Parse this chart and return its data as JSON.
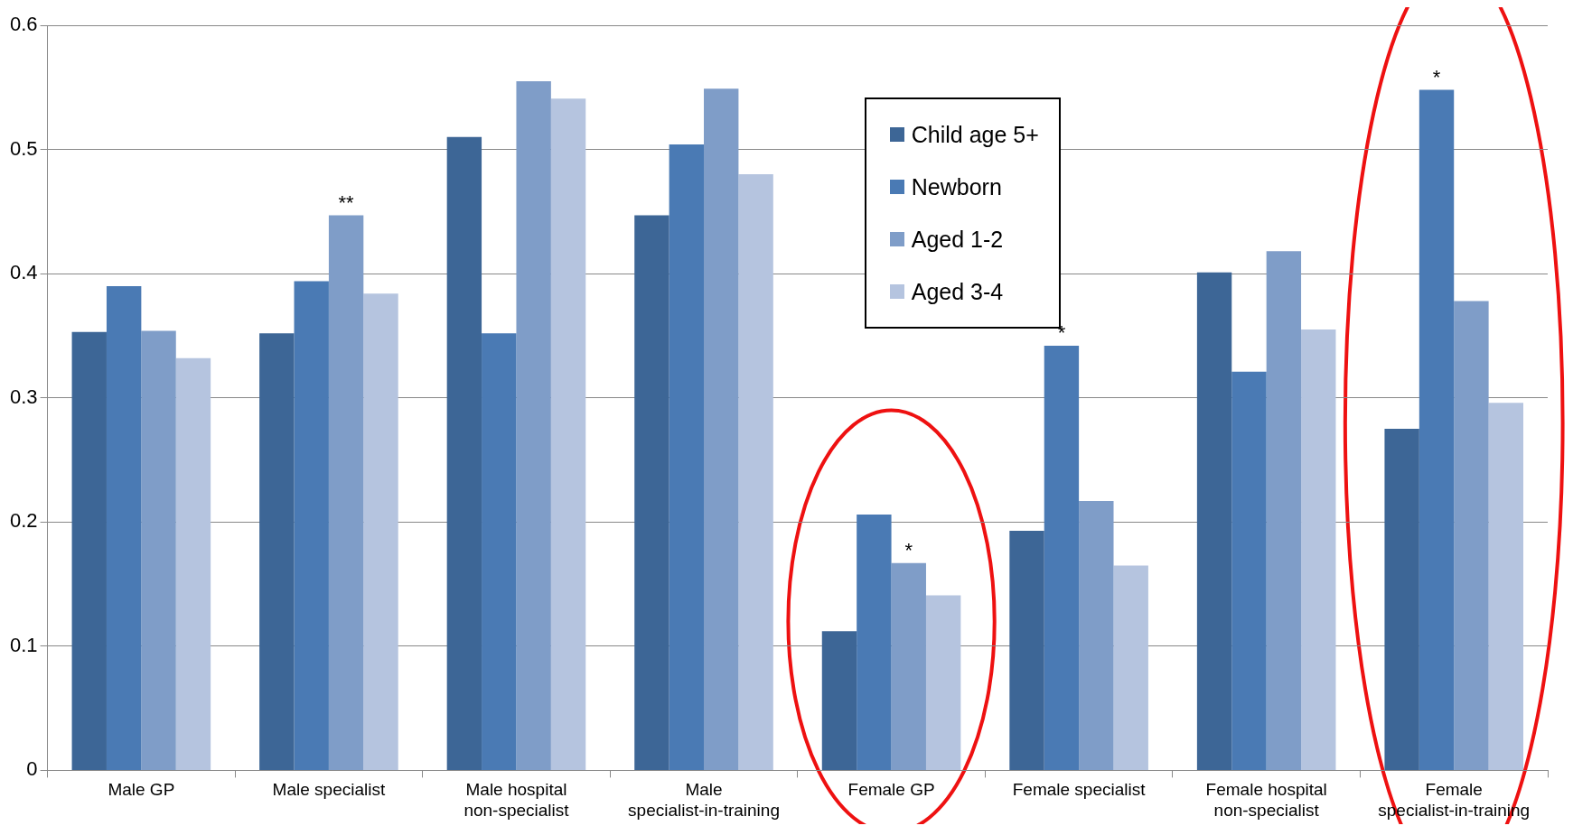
{
  "chart_data": {
    "type": "bar",
    "categories": [
      "Male GP",
      "Male specialist",
      "Male hospital non-specialist",
      "Male specialist-in-training",
      "Female GP",
      "Female specialist",
      "Female hospital non-specialist",
      "Female specialist-in-training"
    ],
    "series": [
      {
        "name": "Child age 5+",
        "color": "#3d6696",
        "values": [
          0.353,
          0.352,
          0.51,
          0.447,
          0.112,
          0.193,
          0.401,
          0.275
        ]
      },
      {
        "name": "Newborn",
        "color": "#4a7ab4",
        "values": [
          0.39,
          0.394,
          0.352,
          0.504,
          0.206,
          0.342,
          0.321,
          0.548
        ]
      },
      {
        "name": "Aged 1-2",
        "color": "#7f9dc8",
        "values": [
          0.354,
          0.447,
          0.555,
          0.549,
          0.167,
          0.217,
          0.418,
          0.378
        ]
      },
      {
        "name": "Aged 3-4",
        "color": "#b5c4df",
        "values": [
          0.332,
          0.384,
          0.541,
          0.48,
          0.141,
          0.165,
          0.355,
          0.296
        ]
      }
    ],
    "ylim": [
      0,
      0.6
    ],
    "yticks": [
      0,
      0.1,
      0.2,
      0.3,
      0.4,
      0.5,
      0.6
    ],
    "grid": "y",
    "legend": "top",
    "annotations": [
      {
        "text": "**",
        "x": "Male specialist",
        "y": 0.447
      },
      {
        "text": "*",
        "x": "Female GP",
        "y": 0.167
      },
      {
        "text": "*",
        "x": "Female specialist",
        "y": 0.342
      },
      {
        "text": "*",
        "x": "Female specialist-in-training",
        "y": 0.548
      }
    ]
  }
}
